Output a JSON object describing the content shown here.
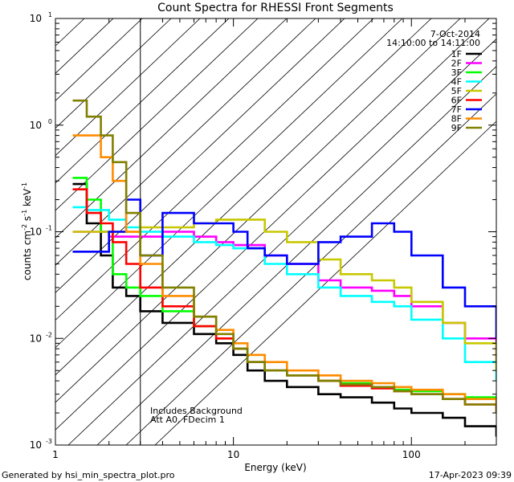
{
  "chart_data": {
    "type": "line",
    "title": "Count Spectra for RHESSI Front Segments",
    "xlabel": "Energy (keV)",
    "ylabel_parts": [
      "counts cm",
      "-2",
      " s",
      "-1",
      " keV",
      "-1"
    ],
    "x_scale": "log",
    "y_scale": "log",
    "xlim": [
      1,
      300
    ],
    "ylim": [
      0.001,
      10
    ],
    "x_ticks": [
      {
        "value": 1,
        "label": "1"
      },
      {
        "value": 10,
        "label": "10"
      },
      {
        "value": 100,
        "label": "100"
      }
    ],
    "y_ticks": [
      {
        "value": 0.001,
        "base": "10",
        "exp": "-3"
      },
      {
        "value": 0.01,
        "base": "10",
        "exp": "-2"
      },
      {
        "value": 0.1,
        "base": "10",
        "exp": "-1"
      },
      {
        "value": 1,
        "base": "10",
        "exp": "0"
      },
      {
        "value": 10,
        "base": "10",
        "exp": "1"
      }
    ],
    "hatched_region": {
      "x_from": 1,
      "x_to": 3
    },
    "date": "7-Oct-2014",
    "time_range": "14:10:00 to 14:11:00",
    "annotations": [
      "Includes Background",
      "Att A0, FDecim 1"
    ],
    "series": [
      {
        "name": "1F",
        "color": "#000000",
        "x": [
          1.25,
          1.5,
          1.8,
          2.1,
          2.5,
          3,
          4,
          6,
          8,
          10,
          12,
          15,
          20,
          30,
          40,
          60,
          80,
          100,
          150,
          200,
          300
        ],
        "y": [
          0.28,
          0.12,
          0.06,
          0.03,
          0.025,
          0.018,
          0.014,
          0.011,
          0.009,
          0.007,
          0.005,
          0.004,
          0.0035,
          0.003,
          0.0028,
          0.0025,
          0.0022,
          0.002,
          0.0018,
          0.0015,
          0.0012
        ]
      },
      {
        "name": "2F",
        "color": "#ff00ff",
        "x": [
          1.25,
          1.5,
          2,
          2.5,
          3,
          4,
          6,
          8,
          10,
          15,
          20,
          30,
          40,
          60,
          80,
          100,
          150,
          200,
          300
        ],
        "y": [
          0.1,
          0.1,
          0.09,
          0.09,
          0.09,
          0.1,
          0.09,
          0.08,
          0.075,
          0.06,
          0.05,
          0.035,
          0.03,
          0.028,
          0.025,
          0.02,
          0.014,
          0.01,
          0.006
        ]
      },
      {
        "name": "3F",
        "color": "#00ff00",
        "x": [
          1.25,
          1.5,
          1.8,
          2.1,
          2.5,
          3,
          4,
          6,
          8,
          10,
          12,
          15,
          20,
          30,
          40,
          60,
          80,
          100,
          150,
          200,
          300
        ],
        "y": [
          0.32,
          0.2,
          0.1,
          0.04,
          0.03,
          0.025,
          0.018,
          0.013,
          0.01,
          0.008,
          0.006,
          0.005,
          0.0045,
          0.004,
          0.0038,
          0.0035,
          0.0033,
          0.0032,
          0.003,
          0.0028,
          0.0025
        ]
      },
      {
        "name": "4F",
        "color": "#00ffff",
        "x": [
          1.25,
          1.5,
          2,
          2.5,
          3,
          4,
          6,
          8,
          10,
          15,
          20,
          30,
          40,
          60,
          80,
          100,
          150,
          200,
          300
        ],
        "y": [
          0.17,
          0.16,
          0.13,
          0.11,
          0.1,
          0.09,
          0.08,
          0.075,
          0.07,
          0.05,
          0.04,
          0.03,
          0.025,
          0.022,
          0.02,
          0.015,
          0.01,
          0.006,
          0.004
        ]
      },
      {
        "name": "5F",
        "color": "#c8c800",
        "x": [
          1.25,
          1.5,
          2,
          2.5,
          3,
          4,
          6,
          8,
          10,
          15,
          20,
          30,
          40,
          60,
          80,
          100,
          150,
          200,
          300
        ],
        "y": [
          0.1,
          0.1,
          0.1,
          0.1,
          0.11,
          0.11,
          0.12,
          0.13,
          0.13,
          0.1,
          0.08,
          0.055,
          0.04,
          0.035,
          0.03,
          0.022,
          0.014,
          0.009,
          0.005
        ]
      },
      {
        "name": "6F",
        "color": "#ff0000",
        "x": [
          1.25,
          1.5,
          1.8,
          2.1,
          2.5,
          3,
          4,
          6,
          8,
          10,
          12,
          15,
          20,
          30,
          40,
          60,
          80,
          100,
          150,
          200,
          300
        ],
        "y": [
          0.25,
          0.15,
          0.12,
          0.08,
          0.05,
          0.03,
          0.02,
          0.013,
          0.01,
          0.008,
          0.006,
          0.005,
          0.0045,
          0.004,
          0.0036,
          0.0034,
          0.0032,
          0.003,
          0.0027,
          0.0024,
          0.002
        ]
      },
      {
        "name": "7F",
        "color": "#0000ff",
        "x": [
          1.25,
          1.5,
          2,
          2.5,
          3,
          4,
          6,
          8,
          10,
          12,
          15,
          20,
          30,
          40,
          60,
          80,
          100,
          150,
          200,
          300
        ],
        "y": [
          0.065,
          0.065,
          0.1,
          0.2,
          0.06,
          0.15,
          0.12,
          0.12,
          0.1,
          0.07,
          0.06,
          0.05,
          0.08,
          0.09,
          0.12,
          0.1,
          0.06,
          0.03,
          0.02,
          0.01
        ]
      },
      {
        "name": "8F",
        "color": "#ff8c00",
        "x": [
          1.25,
          1.5,
          1.8,
          2.1,
          2.5,
          3,
          4,
          6,
          8,
          10,
          12,
          15,
          20,
          30,
          40,
          60,
          80,
          100,
          150,
          200,
          300
        ],
        "y": [
          0.8,
          0.8,
          0.5,
          0.3,
          0.1,
          0.05,
          0.025,
          0.016,
          0.012,
          0.009,
          0.007,
          0.006,
          0.005,
          0.0045,
          0.004,
          0.0038,
          0.0035,
          0.0033,
          0.003,
          0.0027,
          0.0023
        ]
      },
      {
        "name": "9F",
        "color": "#808000",
        "x": [
          1.25,
          1.5,
          1.8,
          2.1,
          2.5,
          3,
          4,
          6,
          8,
          10,
          12,
          15,
          20,
          30,
          40,
          60,
          80,
          100,
          150,
          200,
          300
        ],
        "y": [
          1.7,
          1.2,
          0.8,
          0.45,
          0.15,
          0.06,
          0.03,
          0.016,
          0.011,
          0.008,
          0.006,
          0.005,
          0.0045,
          0.004,
          0.0037,
          0.0035,
          0.0032,
          0.003,
          0.0027,
          0.0024,
          0.002
        ]
      }
    ]
  },
  "footer": {
    "generated_by": "Generated by hsi_min_spectra_plot.pro",
    "timestamp": "17-Apr-2023 09:39"
  }
}
